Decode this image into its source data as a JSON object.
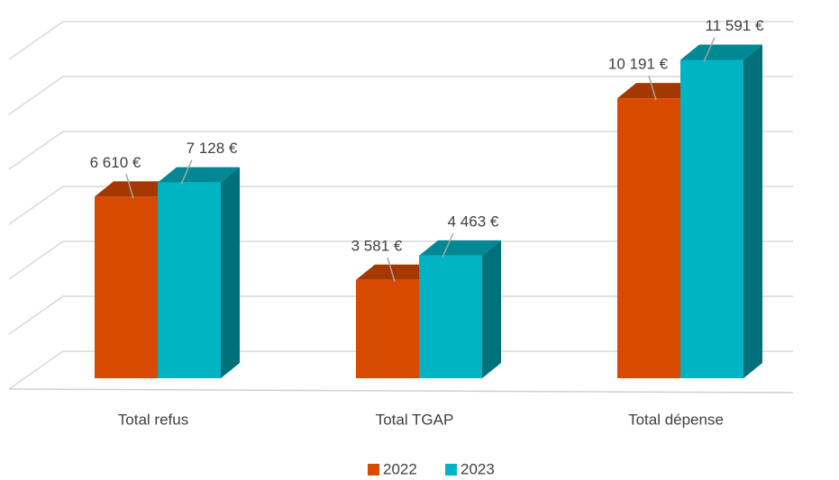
{
  "chart_data": {
    "type": "bar3d",
    "categories": [
      "Total refus",
      "Total TGAP",
      "Total dépense"
    ],
    "series": [
      {
        "name": "2022",
        "color": "#d84a00",
        "values": [
          6610,
          3581,
          10191
        ],
        "value_labels": [
          "6 610 €",
          "3 581 €",
          "10 191 €"
        ]
      },
      {
        "name": "2023",
        "color": "#00b4c4",
        "values": [
          7128,
          4463,
          11591
        ],
        "value_labels": [
          "7 128 €",
          "4 463 €",
          "11 591 €"
        ]
      }
    ],
    "ylim": [
      0,
      12000
    ],
    "yticks": [
      0,
      2000,
      4000,
      6000,
      8000,
      10000,
      12000
    ],
    "grid": true,
    "legend": "bottom"
  }
}
